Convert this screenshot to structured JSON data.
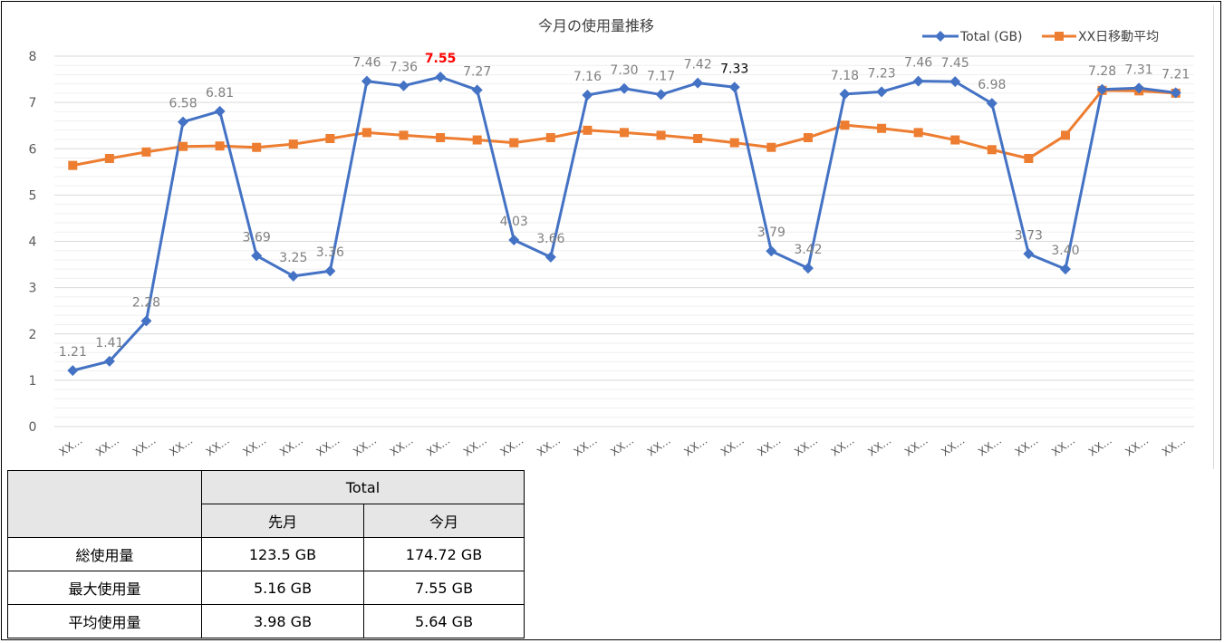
{
  "chart_data": {
    "type": "line",
    "title": "今月の使用量推移",
    "categories": [
      "XX...",
      "XX...",
      "XX...",
      "XX...",
      "XX...",
      "XX...",
      "XX...",
      "XX...",
      "XX...",
      "XX...",
      "XX...",
      "XX...",
      "XX...",
      "XX...",
      "XX...",
      "XX...",
      "XX...",
      "XX...",
      "XX...",
      "XX...",
      "XX...",
      "XX...",
      "XX...",
      "XX...",
      "XX...",
      "XX...",
      "XX...",
      "XX...",
      "XX...",
      "XX...",
      "XX..."
    ],
    "ylim": [
      0,
      8
    ],
    "yticks": [
      0,
      1,
      2,
      3,
      4,
      5,
      6,
      7,
      8
    ],
    "grid": true,
    "legend_position": "top-right",
    "series": [
      {
        "name": "Total (GB)",
        "color": "#4472c4",
        "marker": "diamond",
        "values": [
          1.21,
          1.41,
          2.28,
          6.58,
          6.81,
          3.69,
          3.25,
          3.36,
          7.46,
          7.36,
          7.55,
          7.27,
          4.03,
          3.66,
          7.16,
          7.3,
          7.17,
          7.42,
          7.33,
          3.79,
          3.42,
          7.18,
          7.23,
          7.46,
          7.45,
          6.98,
          3.73,
          3.4,
          7.28,
          7.31,
          7.21
        ],
        "labels": [
          "1.21",
          "1.41",
          "2.28",
          "6.58",
          "6.81",
          "3.69",
          "3.25",
          "3.36",
          "7.46",
          "7.36",
          "7.55",
          "7.27",
          "4.03",
          "3.66",
          "7.16",
          "7.30",
          "7.17",
          "7.42",
          "7.33",
          "3.79",
          "3.42",
          "7.18",
          "7.23",
          "7.46",
          "7.45",
          "6.98",
          "3.73",
          "3.40",
          "7.28",
          "7.31",
          "7.21"
        ],
        "label_colors": {
          "10": "#ff0000",
          "18": "#000000"
        }
      },
      {
        "name": "XX日移動平均",
        "color": "#ed7d31",
        "marker": "square",
        "values": [
          5.64,
          5.79,
          5.93,
          6.05,
          6.06,
          6.03,
          6.1,
          6.22,
          6.35,
          6.29,
          6.24,
          6.19,
          6.13,
          6.24,
          6.4,
          6.35,
          6.29,
          6.22,
          6.13,
          6.03,
          6.24,
          6.51,
          6.44,
          6.35,
          6.19,
          5.98,
          5.79,
          6.29,
          7.26,
          7.25,
          7.2
        ]
      }
    ]
  },
  "table": {
    "group_header": "Total",
    "col_headers": [
      "先月",
      "今月"
    ],
    "rows": [
      {
        "label": "総使用量",
        "last": "123.5 GB",
        "this": "174.72 GB"
      },
      {
        "label": "最大使用量",
        "last": "5.16 GB",
        "this": "7.55 GB"
      },
      {
        "label": "平均使用量",
        "last": "3.98 GB",
        "this": "5.64 GB"
      }
    ]
  }
}
